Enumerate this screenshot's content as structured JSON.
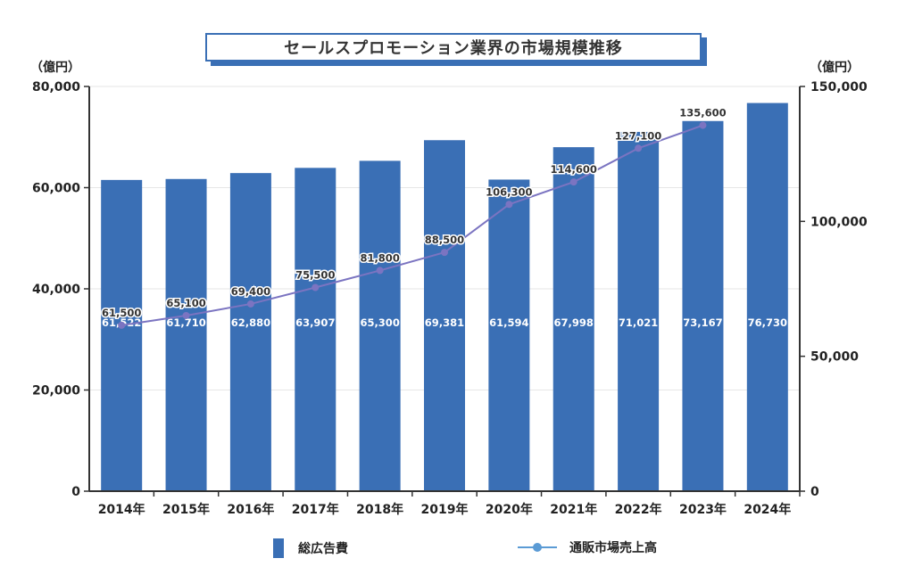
{
  "title": "セールスプロモーション業界の市場規模推移",
  "chart_data": {
    "type": "bar",
    "title": "セールスプロモーション業界の市場規模推移",
    "categories": [
      "2014年",
      "2015年",
      "2016年",
      "2017年",
      "2018年",
      "2019年",
      "2020年",
      "2021年",
      "2022年",
      "2023年",
      "2024年"
    ],
    "series": [
      {
        "name": "総広告費",
        "type": "bar",
        "axis": "left",
        "values": [
          61522,
          61710,
          62880,
          63907,
          65300,
          69381,
          61594,
          67998,
          71021,
          73167,
          76730
        ],
        "labels": [
          "61,522",
          "61,710",
          "62,880",
          "63,907",
          "65,300",
          "69,381",
          "61,594",
          "67,998",
          "71,021",
          "73,167",
          "76,730"
        ]
      },
      {
        "name": "通販市場売上高",
        "type": "line",
        "axis": "right",
        "values": [
          61500,
          65100,
          69400,
          75500,
          81800,
          88500,
          106300,
          114600,
          127100,
          135600,
          null
        ],
        "labels": [
          "61,500",
          "65,100",
          "69,400",
          "75,500",
          "81,800",
          "88,500",
          "106,300",
          "114,600",
          "127,100",
          "135,600",
          ""
        ]
      }
    ],
    "y_left": {
      "unit": "（億円）",
      "ylim": [
        0,
        80000
      ],
      "ticks": [
        0,
        20000,
        40000,
        60000,
        80000
      ],
      "tick_labels": [
        "0",
        "20,000",
        "40,000",
        "60,000",
        "80,000"
      ]
    },
    "y_right": {
      "unit": "（億円）",
      "ylim": [
        0,
        150000
      ],
      "ticks": [
        0,
        50000,
        100000,
        150000
      ],
      "tick_labels": [
        "0",
        "50,000",
        "100,000",
        "150,000"
      ]
    },
    "grid": true,
    "legend_position": "bottom"
  },
  "colors": {
    "bar": "#3a6fb5",
    "line": "#7b74c1",
    "legend_line": "#5b9bd5",
    "grid": "#e6e6e6",
    "axis": "#333333"
  },
  "legend": {
    "bar_label": "総広告費",
    "line_label": "通販市場売上高"
  }
}
